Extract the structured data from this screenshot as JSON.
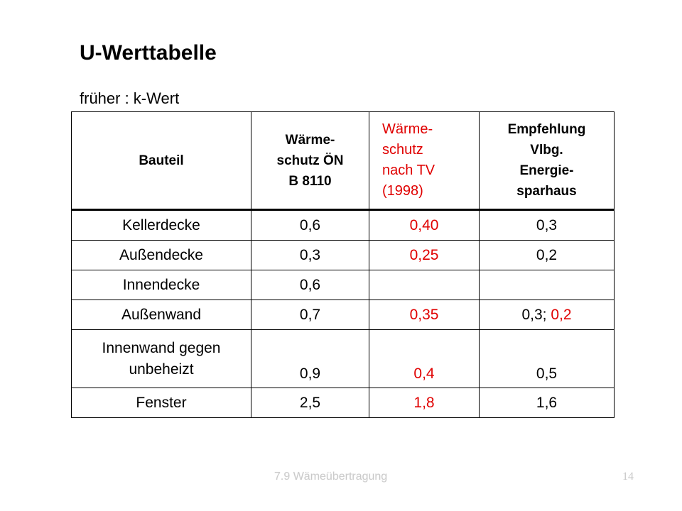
{
  "title": "U-Werttabelle",
  "subtitle": "früher : k-Wert",
  "table": {
    "headers": [
      "Bauteil",
      "Wärme-\nschutz    ÖN\nB 8110",
      "Wärme-\nschutz\nnach TV\n(1998)",
      "Empfehlung\nVlbg.\nEnergie-\nsparhaus"
    ],
    "rows": [
      {
        "bauteil": "Kellerdecke",
        "oen": "0,6",
        "tv": "0,40",
        "empf": "0,3",
        "empf_red": ""
      },
      {
        "bauteil": "Außendecke",
        "oen": "0,3",
        "tv": "0,25",
        "empf": "0,2",
        "empf_red": ""
      },
      {
        "bauteil": "Innendecke",
        "oen": "0,6",
        "tv": "",
        "empf": "",
        "empf_red": ""
      },
      {
        "bauteil": "Außenwand",
        "oen": "0,7",
        "tv": "0,35",
        "empf": "0,3; ",
        "empf_red": "0,2"
      },
      {
        "bauteil": "Innenwand gegen unbeheizt",
        "oen": "0,9",
        "tv": "0,4",
        "empf": "0,5",
        "empf_red": ""
      },
      {
        "bauteil": "Fenster",
        "oen": "2,5",
        "tv": "1,8",
        "empf": "1,6",
        "empf_red": ""
      }
    ]
  },
  "footer": {
    "label": "7.9 Wämeübertragung",
    "page": "14"
  },
  "colors": {
    "accent_red": "#e00000",
    "footer_gray": "#c8c8c8"
  }
}
